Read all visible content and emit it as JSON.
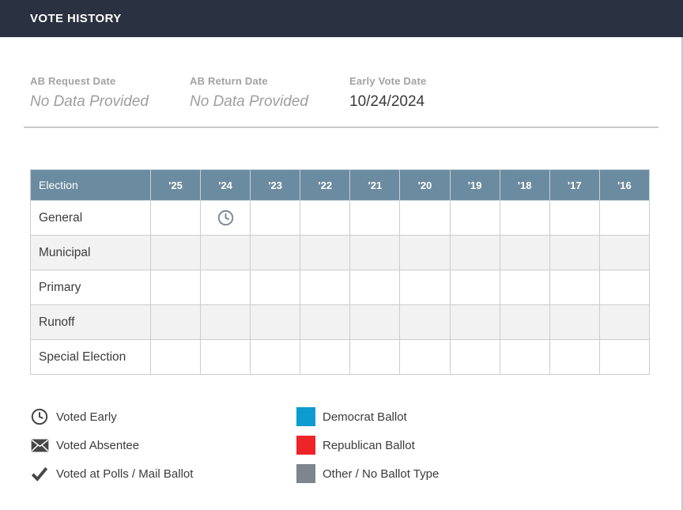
{
  "header": {
    "title": "VOTE HISTORY"
  },
  "info_fields": [
    {
      "key": "ab-request-date",
      "label": "AB Request Date",
      "value": "No Data Provided",
      "empty": true
    },
    {
      "key": "ab-return-date",
      "label": "AB Return Date",
      "value": "No Data Provided",
      "empty": true
    },
    {
      "key": "early-vote-date",
      "label": "Early Vote Date",
      "value": "10/24/2024",
      "empty": false
    }
  ],
  "table": {
    "election_header": "Election",
    "year_columns": [
      "'25",
      "'24",
      "'23",
      "'22",
      "'21",
      "'20",
      "'19",
      "'18",
      "'17",
      "'16"
    ],
    "rows": [
      {
        "label": "General",
        "cells": [
          "",
          "voted-early",
          "",
          "",
          "",
          "",
          "",
          "",
          "",
          ""
        ]
      },
      {
        "label": "Municipal",
        "cells": [
          "",
          "",
          "",
          "",
          "",
          "",
          "",
          "",
          "",
          ""
        ]
      },
      {
        "label": "Primary",
        "cells": [
          "",
          "",
          "",
          "",
          "",
          "",
          "",
          "",
          "",
          ""
        ]
      },
      {
        "label": "Runoff",
        "cells": [
          "",
          "",
          "",
          "",
          "",
          "",
          "",
          "",
          "",
          ""
        ]
      },
      {
        "label": "Special Election",
        "cells": [
          "",
          "",
          "",
          "",
          "",
          "",
          "",
          "",
          "",
          ""
        ]
      }
    ]
  },
  "legend": {
    "left": [
      {
        "key": "voted-early",
        "icon": "clock-icon",
        "label": "Voted Early"
      },
      {
        "key": "voted-absentee",
        "icon": "envelope-icon",
        "label": "Voted Absentee"
      },
      {
        "key": "voted-at-polls",
        "icon": "check-icon",
        "label": "Voted at Polls / Mail Ballot"
      }
    ],
    "right": [
      {
        "key": "democrat-ballot",
        "icon": "color-swatch",
        "color": "#0c9ccf",
        "label": "Democrat Ballot"
      },
      {
        "key": "republican-ballot",
        "icon": "color-swatch",
        "color": "#ee2429",
        "label": "Republican Ballot"
      },
      {
        "key": "other-ballot-type",
        "icon": "color-swatch",
        "color": "#7e858e",
        "label": "Other / No Ballot Type"
      }
    ]
  },
  "colors": {
    "top_bar": "#2a3140",
    "table_header": "#6b8ba0",
    "row_alt": "#f2f2f2",
    "legend_icon": "#474747",
    "cell_clock_icon": "#7d8694",
    "democrat": "#0c9ccf",
    "republican": "#ee2429",
    "other_ballot": "#7e858e"
  }
}
